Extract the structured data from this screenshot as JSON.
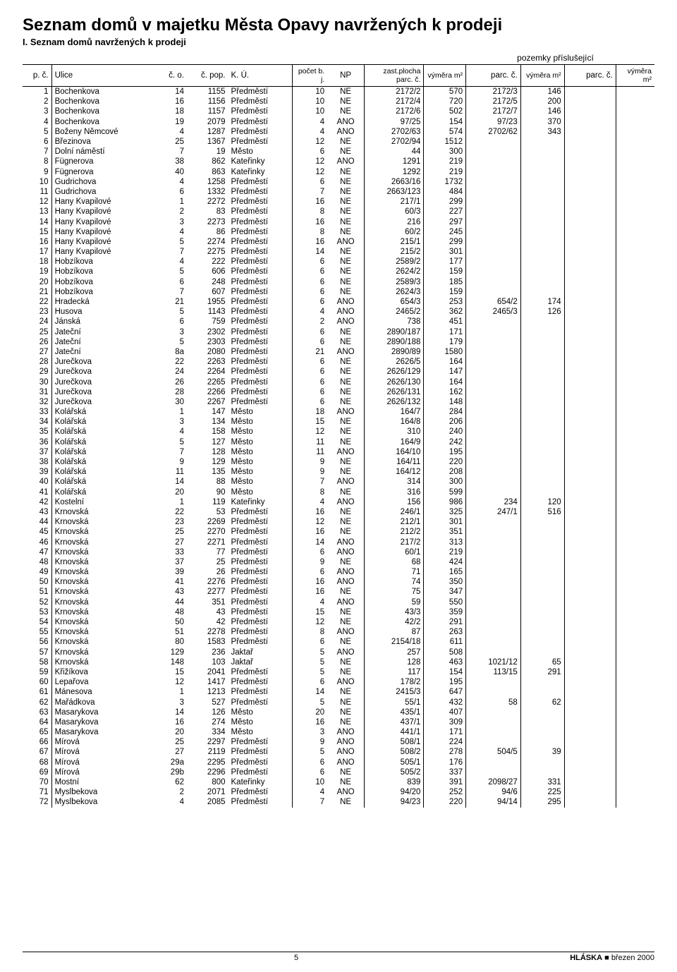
{
  "title": "Seznam domů v majetku Města Opavy navržených k prodeji",
  "subtitle": "I. Seznam domů navržených k prodeji",
  "pozemky_label": "pozemky příslušející",
  "headers": {
    "pc": "p. č.",
    "ulice": "Ulice",
    "co": "č. o.",
    "pop": "č. pop.",
    "ku": "K. Ú.",
    "bj": "počet b. j.",
    "np": "NP",
    "zp": "zast.plocha parc. č.",
    "vymera": "výměra m²",
    "parc": "parc. č.",
    "vymera2": "výměra m²",
    "parc2": "parc. č.",
    "vymera3": "výměra m²"
  },
  "footer": {
    "page": "5",
    "pub": "HLÁSKA",
    "sep": "■",
    "date": "březen 2000"
  },
  "rows": [
    {
      "n": 1,
      "ul": "Bochenkova",
      "co": "14",
      "pop": "1155",
      "ku": "Předměstí",
      "bj": "10",
      "np": "NE",
      "zp": "2172/2",
      "vy": "570",
      "p1": "2172/3",
      "v1": "146",
      "p2": "",
      "v2": ""
    },
    {
      "n": 2,
      "ul": "Bochenkova",
      "co": "16",
      "pop": "1156",
      "ku": "Předměstí",
      "bj": "10",
      "np": "NE",
      "zp": "2172/4",
      "vy": "720",
      "p1": "2172/5",
      "v1": "200",
      "p2": "",
      "v2": ""
    },
    {
      "n": 3,
      "ul": "Bochenkova",
      "co": "18",
      "pop": "1157",
      "ku": "Předměstí",
      "bj": "10",
      "np": "NE",
      "zp": "2172/6",
      "vy": "502",
      "p1": "2172/7",
      "v1": "146",
      "p2": "",
      "v2": ""
    },
    {
      "n": 4,
      "ul": "Bochenkova",
      "co": "19",
      "pop": "2079",
      "ku": "Předměstí",
      "bj": "4",
      "np": "ANO",
      "zp": "97/25",
      "vy": "154",
      "p1": "97/23",
      "v1": "370",
      "p2": "",
      "v2": ""
    },
    {
      "n": 5,
      "ul": "Boženy Němcové",
      "co": "4",
      "pop": "1287",
      "ku": "Předměstí",
      "bj": "4",
      "np": "ANO",
      "zp": "2702/63",
      "vy": "574",
      "p1": "2702/62",
      "v1": "343",
      "p2": "",
      "v2": ""
    },
    {
      "n": 6,
      "ul": "Březinova",
      "co": "25",
      "pop": "1367",
      "ku": "Předměstí",
      "bj": "12",
      "np": "NE",
      "zp": "2702/94",
      "vy": "1512",
      "p1": "",
      "v1": "",
      "p2": "",
      "v2": ""
    },
    {
      "n": 7,
      "ul": "Dolní náměstí",
      "co": "7",
      "pop": "19",
      "ku": "Město",
      "bj": "6",
      "np": "NE",
      "zp": "44",
      "vy": "300",
      "p1": "",
      "v1": "",
      "p2": "",
      "v2": ""
    },
    {
      "n": 8,
      "ul": "Fügnerova",
      "co": "38",
      "pop": "862",
      "ku": "Kateřinky",
      "bj": "12",
      "np": "ANO",
      "zp": "1291",
      "vy": "219",
      "p1": "",
      "v1": "",
      "p2": "",
      "v2": ""
    },
    {
      "n": 9,
      "ul": "Fügnerova",
      "co": "40",
      "pop": "863",
      "ku": "Kateřinky",
      "bj": "12",
      "np": "NE",
      "zp": "1292",
      "vy": "219",
      "p1": "",
      "v1": "",
      "p2": "",
      "v2": ""
    },
    {
      "n": 10,
      "ul": "Gudrichova",
      "co": "4",
      "pop": "1258",
      "ku": "Předměstí",
      "bj": "6",
      "np": "NE",
      "zp": "2663/16",
      "vy": "1732",
      "p1": "",
      "v1": "",
      "p2": "",
      "v2": ""
    },
    {
      "n": 11,
      "ul": "Gudrichova",
      "co": "6",
      "pop": "1332",
      "ku": "Předměstí",
      "bj": "7",
      "np": "NE",
      "zp": "2663/123",
      "vy": "484",
      "p1": "",
      "v1": "",
      "p2": "",
      "v2": ""
    },
    {
      "n": 12,
      "ul": "Hany Kvapilové",
      "co": "1",
      "pop": "2272",
      "ku": "Předměstí",
      "bj": "16",
      "np": "NE",
      "zp": "217/1",
      "vy": "299",
      "p1": "",
      "v1": "",
      "p2": "",
      "v2": ""
    },
    {
      "n": 13,
      "ul": "Hany Kvapilové",
      "co": "2",
      "pop": "83",
      "ku": "Předměstí",
      "bj": "8",
      "np": "NE",
      "zp": "60/3",
      "vy": "227",
      "p1": "",
      "v1": "",
      "p2": "",
      "v2": ""
    },
    {
      "n": 14,
      "ul": "Hany Kvapilové",
      "co": "3",
      "pop": "2273",
      "ku": "Předměstí",
      "bj": "16",
      "np": "NE",
      "zp": "216",
      "vy": "297",
      "p1": "",
      "v1": "",
      "p2": "",
      "v2": ""
    },
    {
      "n": 15,
      "ul": "Hany Kvapilové",
      "co": "4",
      "pop": "86",
      "ku": "Předměstí",
      "bj": "8",
      "np": "NE",
      "zp": "60/2",
      "vy": "245",
      "p1": "",
      "v1": "",
      "p2": "",
      "v2": ""
    },
    {
      "n": 16,
      "ul": "Hany Kvapilové",
      "co": "5",
      "pop": "2274",
      "ku": "Předměstí",
      "bj": "16",
      "np": "ANO",
      "zp": "215/1",
      "vy": "299",
      "p1": "",
      "v1": "",
      "p2": "",
      "v2": ""
    },
    {
      "n": 17,
      "ul": "Hany Kvapilové",
      "co": "7",
      "pop": "2275",
      "ku": "Předměstí",
      "bj": "14",
      "np": "NE",
      "zp": "215/2",
      "vy": "301",
      "p1": "",
      "v1": "",
      "p2": "",
      "v2": ""
    },
    {
      "n": 18,
      "ul": "Hobzíkova",
      "co": "4",
      "pop": "222",
      "ku": "Předměstí",
      "bj": "6",
      "np": "NE",
      "zp": "2589/2",
      "vy": "177",
      "p1": "",
      "v1": "",
      "p2": "",
      "v2": ""
    },
    {
      "n": 19,
      "ul": "Hobzíkova",
      "co": "5",
      "pop": "606",
      "ku": "Předměstí",
      "bj": "6",
      "np": "NE",
      "zp": "2624/2",
      "vy": "159",
      "p1": "",
      "v1": "",
      "p2": "",
      "v2": ""
    },
    {
      "n": 20,
      "ul": "Hobzíkova",
      "co": "6",
      "pop": "248",
      "ku": "Předměstí",
      "bj": "6",
      "np": "NE",
      "zp": "2589/3",
      "vy": "185",
      "p1": "",
      "v1": "",
      "p2": "",
      "v2": ""
    },
    {
      "n": 21,
      "ul": "Hobzíkova",
      "co": "7",
      "pop": "607",
      "ku": "Předměstí",
      "bj": "6",
      "np": "NE",
      "zp": "2624/3",
      "vy": "159",
      "p1": "",
      "v1": "",
      "p2": "",
      "v2": ""
    },
    {
      "n": 22,
      "ul": "Hradecká",
      "co": "21",
      "pop": "1955",
      "ku": "Předměstí",
      "bj": "6",
      "np": "ANO",
      "zp": "654/3",
      "vy": "253",
      "p1": "654/2",
      "v1": "174",
      "p2": "",
      "v2": ""
    },
    {
      "n": 23,
      "ul": "Husova",
      "co": "5",
      "pop": "1143",
      "ku": "Předměstí",
      "bj": "4",
      "np": "ANO",
      "zp": "2465/2",
      "vy": "362",
      "p1": "2465/3",
      "v1": "126",
      "p2": "",
      "v2": ""
    },
    {
      "n": 24,
      "ul": "Jánská",
      "co": "6",
      "pop": "759",
      "ku": "Předměstí",
      "bj": "2",
      "np": "ANO",
      "zp": "738",
      "vy": "451",
      "p1": "",
      "v1": "",
      "p2": "",
      "v2": ""
    },
    {
      "n": 25,
      "ul": "Jateční",
      "co": "3",
      "pop": "2302",
      "ku": "Předměstí",
      "bj": "6",
      "np": "NE",
      "zp": "2890/187",
      "vy": "171",
      "p1": "",
      "v1": "",
      "p2": "",
      "v2": ""
    },
    {
      "n": 26,
      "ul": "Jateční",
      "co": "5",
      "pop": "2303",
      "ku": "Předměstí",
      "bj": "6",
      "np": "NE",
      "zp": "2890/188",
      "vy": "179",
      "p1": "",
      "v1": "",
      "p2": "",
      "v2": ""
    },
    {
      "n": 27,
      "ul": "Jateční",
      "co": "8a",
      "pop": "2080",
      "ku": "Předměstí",
      "bj": "21",
      "np": "ANO",
      "zp": "2890/89",
      "vy": "1580",
      "p1": "",
      "v1": "",
      "p2": "",
      "v2": ""
    },
    {
      "n": 28,
      "ul": "Jurečkova",
      "co": "22",
      "pop": "2263",
      "ku": "Předměstí",
      "bj": "6",
      "np": "NE",
      "zp": "2626/5",
      "vy": "164",
      "p1": "",
      "v1": "",
      "p2": "",
      "v2": ""
    },
    {
      "n": 29,
      "ul": "Jurečkova",
      "co": "24",
      "pop": "2264",
      "ku": "Předměstí",
      "bj": "6",
      "np": "NE",
      "zp": "2626/129",
      "vy": "147",
      "p1": "",
      "v1": "",
      "p2": "",
      "v2": ""
    },
    {
      "n": 30,
      "ul": "Jurečkova",
      "co": "26",
      "pop": "2265",
      "ku": "Předměstí",
      "bj": "6",
      "np": "NE",
      "zp": "2626/130",
      "vy": "164",
      "p1": "",
      "v1": "",
      "p2": "",
      "v2": ""
    },
    {
      "n": 31,
      "ul": "Jurečkova",
      "co": "28",
      "pop": "2266",
      "ku": "Předměstí",
      "bj": "6",
      "np": "NE",
      "zp": "2626/131",
      "vy": "162",
      "p1": "",
      "v1": "",
      "p2": "",
      "v2": ""
    },
    {
      "n": 32,
      "ul": "Jurečkova",
      "co": "30",
      "pop": "2267",
      "ku": "Předměstí",
      "bj": "6",
      "np": "NE",
      "zp": "2626/132",
      "vy": "148",
      "p1": "",
      "v1": "",
      "p2": "",
      "v2": ""
    },
    {
      "n": 33,
      "ul": "Kolářská",
      "co": "1",
      "pop": "147",
      "ku": "Město",
      "bj": "18",
      "np": "ANO",
      "zp": "164/7",
      "vy": "284",
      "p1": "",
      "v1": "",
      "p2": "",
      "v2": ""
    },
    {
      "n": 34,
      "ul": "Kolářská",
      "co": "3",
      "pop": "134",
      "ku": "Město",
      "bj": "15",
      "np": "NE",
      "zp": "164/8",
      "vy": "206",
      "p1": "",
      "v1": "",
      "p2": "",
      "v2": ""
    },
    {
      "n": 35,
      "ul": "Kolářská",
      "co": "4",
      "pop": "158",
      "ku": "Město",
      "bj": "12",
      "np": "NE",
      "zp": "310",
      "vy": "240",
      "p1": "",
      "v1": "",
      "p2": "",
      "v2": ""
    },
    {
      "n": 36,
      "ul": "Kolářská",
      "co": "5",
      "pop": "127",
      "ku": "Město",
      "bj": "11",
      "np": "NE",
      "zp": "164/9",
      "vy": "242",
      "p1": "",
      "v1": "",
      "p2": "",
      "v2": ""
    },
    {
      "n": 37,
      "ul": "Kolářská",
      "co": "7",
      "pop": "128",
      "ku": "Město",
      "bj": "11",
      "np": "ANO",
      "zp": "164/10",
      "vy": "195",
      "p1": "",
      "v1": "",
      "p2": "",
      "v2": ""
    },
    {
      "n": 38,
      "ul": "Kolářská",
      "co": "9",
      "pop": "129",
      "ku": "Město",
      "bj": "9",
      "np": "NE",
      "zp": "164/11",
      "vy": "220",
      "p1": "",
      "v1": "",
      "p2": "",
      "v2": ""
    },
    {
      "n": 39,
      "ul": "Kolářská",
      "co": "11",
      "pop": "135",
      "ku": "Město",
      "bj": "9",
      "np": "NE",
      "zp": "164/12",
      "vy": "208",
      "p1": "",
      "v1": "",
      "p2": "",
      "v2": ""
    },
    {
      "n": 40,
      "ul": "Kolářská",
      "co": "14",
      "pop": "88",
      "ku": "Město",
      "bj": "7",
      "np": "ANO",
      "zp": "314",
      "vy": "300",
      "p1": "",
      "v1": "",
      "p2": "",
      "v2": ""
    },
    {
      "n": 41,
      "ul": "Kolářská",
      "co": "20",
      "pop": "90",
      "ku": "Město",
      "bj": "8",
      "np": "NE",
      "zp": "316",
      "vy": "599",
      "p1": "",
      "v1": "",
      "p2": "",
      "v2": ""
    },
    {
      "n": 42,
      "ul": "Kostelní",
      "co": "1",
      "pop": "119",
      "ku": "Kateřinky",
      "bj": "4",
      "np": "ANO",
      "zp": "156",
      "vy": "986",
      "p1": "234",
      "v1": "120",
      "p2": "",
      "v2": ""
    },
    {
      "n": 43,
      "ul": "Krnovská",
      "co": "22",
      "pop": "53",
      "ku": "Předměstí",
      "bj": "16",
      "np": "NE",
      "zp": "246/1",
      "vy": "325",
      "p1": "247/1",
      "v1": "516",
      "p2": "",
      "v2": ""
    },
    {
      "n": 44,
      "ul": "Krnovská",
      "co": "23",
      "pop": "2269",
      "ku": "Předměstí",
      "bj": "12",
      "np": "NE",
      "zp": "212/1",
      "vy": "301",
      "p1": "",
      "v1": "",
      "p2": "",
      "v2": ""
    },
    {
      "n": 45,
      "ul": "Krnovská",
      "co": "25",
      "pop": "2270",
      "ku": "Předměstí",
      "bj": "16",
      "np": "NE",
      "zp": "212/2",
      "vy": "351",
      "p1": "",
      "v1": "",
      "p2": "",
      "v2": ""
    },
    {
      "n": 46,
      "ul": "Krnovská",
      "co": "27",
      "pop": "2271",
      "ku": "Předměstí",
      "bj": "14",
      "np": "ANO",
      "zp": "217/2",
      "vy": "313",
      "p1": "",
      "v1": "",
      "p2": "",
      "v2": ""
    },
    {
      "n": 47,
      "ul": "Krnovská",
      "co": "33",
      "pop": "77",
      "ku": "Předměstí",
      "bj": "6",
      "np": "ANO",
      "zp": "60/1",
      "vy": "219",
      "p1": "",
      "v1": "",
      "p2": "",
      "v2": ""
    },
    {
      "n": 48,
      "ul": "Krnovská",
      "co": "37",
      "pop": "25",
      "ku": "Předměstí",
      "bj": "9",
      "np": "NE",
      "zp": "68",
      "vy": "424",
      "p1": "",
      "v1": "",
      "p2": "",
      "v2": ""
    },
    {
      "n": 49,
      "ul": "Krnovská",
      "co": "39",
      "pop": "26",
      "ku": "Předměstí",
      "bj": "6",
      "np": "ANO",
      "zp": "71",
      "vy": "165",
      "p1": "",
      "v1": "",
      "p2": "",
      "v2": ""
    },
    {
      "n": 50,
      "ul": "Krnovská",
      "co": "41",
      "pop": "2276",
      "ku": "Předměstí",
      "bj": "16",
      "np": "ANO",
      "zp": "74",
      "vy": "350",
      "p1": "",
      "v1": "",
      "p2": "",
      "v2": ""
    },
    {
      "n": 51,
      "ul": "Krnovská",
      "co": "43",
      "pop": "2277",
      "ku": "Předměstí",
      "bj": "16",
      "np": "NE",
      "zp": "75",
      "vy": "347",
      "p1": "",
      "v1": "",
      "p2": "",
      "v2": ""
    },
    {
      "n": 52,
      "ul": "Krnovská",
      "co": "44",
      "pop": "351",
      "ku": "Předměstí",
      "bj": "4",
      "np": "ANO",
      "zp": "59",
      "vy": "550",
      "p1": "",
      "v1": "",
      "p2": "",
      "v2": ""
    },
    {
      "n": 53,
      "ul": "Krnovská",
      "co": "48",
      "pop": "43",
      "ku": "Předměstí",
      "bj": "15",
      "np": "NE",
      "zp": "43/3",
      "vy": "359",
      "p1": "",
      "v1": "",
      "p2": "",
      "v2": ""
    },
    {
      "n": 54,
      "ul": "Krnovská",
      "co": "50",
      "pop": "42",
      "ku": "Předměstí",
      "bj": "12",
      "np": "NE",
      "zp": "42/2",
      "vy": "291",
      "p1": "",
      "v1": "",
      "p2": "",
      "v2": ""
    },
    {
      "n": 55,
      "ul": "Krnovská",
      "co": "51",
      "pop": "2278",
      "ku": "Předměstí",
      "bj": "8",
      "np": "ANO",
      "zp": "87",
      "vy": "263",
      "p1": "",
      "v1": "",
      "p2": "",
      "v2": ""
    },
    {
      "n": 56,
      "ul": "Krnovská",
      "co": "80",
      "pop": "1583",
      "ku": "Předměstí",
      "bj": "6",
      "np": "NE",
      "zp": "2154/18",
      "vy": "611",
      "p1": "",
      "v1": "",
      "p2": "",
      "v2": ""
    },
    {
      "n": 57,
      "ul": "Krnovská",
      "co": "129",
      "pop": "236",
      "ku": "Jaktař",
      "bj": "5",
      "np": "ANO",
      "zp": "257",
      "vy": "508",
      "p1": "",
      "v1": "",
      "p2": "",
      "v2": ""
    },
    {
      "n": 58,
      "ul": "Krnovská",
      "co": "148",
      "pop": "103",
      "ku": "Jaktař",
      "bj": "5",
      "np": "NE",
      "zp": "128",
      "vy": "463",
      "p1": "1021/12",
      "v1": "65",
      "p2": "",
      "v2": ""
    },
    {
      "n": 59,
      "ul": "Křižíkova",
      "co": "15",
      "pop": "2041",
      "ku": "Předměstí",
      "bj": "5",
      "np": "NE",
      "zp": "117",
      "vy": "154",
      "p1": "113/15",
      "v1": "291",
      "p2": "",
      "v2": ""
    },
    {
      "n": 60,
      "ul": "Lepařova",
      "co": "12",
      "pop": "1417",
      "ku": "Předměstí",
      "bj": "6",
      "np": "ANO",
      "zp": "178/2",
      "vy": "195",
      "p1": "",
      "v1": "",
      "p2": "",
      "v2": ""
    },
    {
      "n": 61,
      "ul": "Mánesova",
      "co": "1",
      "pop": "1213",
      "ku": "Předměstí",
      "bj": "14",
      "np": "NE",
      "zp": "2415/3",
      "vy": "647",
      "p1": "",
      "v1": "",
      "p2": "",
      "v2": ""
    },
    {
      "n": 62,
      "ul": "Mařádkova",
      "co": "3",
      "pop": "527",
      "ku": "Předměstí",
      "bj": "5",
      "np": "NE",
      "zp": "55/1",
      "vy": "432",
      "p1": "58",
      "v1": "62",
      "p2": "",
      "v2": ""
    },
    {
      "n": 63,
      "ul": "Masarykova",
      "co": "14",
      "pop": "126",
      "ku": "Město",
      "bj": "20",
      "np": "NE",
      "zp": "435/1",
      "vy": "407",
      "p1": "",
      "v1": "",
      "p2": "",
      "v2": ""
    },
    {
      "n": 64,
      "ul": "Masarykova",
      "co": "16",
      "pop": "274",
      "ku": "Město",
      "bj": "16",
      "np": "NE",
      "zp": "437/1",
      "vy": "309",
      "p1": "",
      "v1": "",
      "p2": "",
      "v2": ""
    },
    {
      "n": 65,
      "ul": "Masarykova",
      "co": "20",
      "pop": "334",
      "ku": "Město",
      "bj": "3",
      "np": "ANO",
      "zp": "441/1",
      "vy": "171",
      "p1": "",
      "v1": "",
      "p2": "",
      "v2": ""
    },
    {
      "n": 66,
      "ul": "Mírová",
      "co": "25",
      "pop": "2297",
      "ku": "Předměstí",
      "bj": "9",
      "np": "ANO",
      "zp": "508/1",
      "vy": "224",
      "p1": "",
      "v1": "",
      "p2": "",
      "v2": ""
    },
    {
      "n": 67,
      "ul": "Mírová",
      "co": "27",
      "pop": "2119",
      "ku": "Předměstí",
      "bj": "5",
      "np": "ANO",
      "zp": "508/2",
      "vy": "278",
      "p1": "504/5",
      "v1": "39",
      "p2": "",
      "v2": ""
    },
    {
      "n": 68,
      "ul": "Mírová",
      "co": "29a",
      "pop": "2295",
      "ku": "Předměstí",
      "bj": "6",
      "np": "ANO",
      "zp": "505/1",
      "vy": "176",
      "p1": "",
      "v1": "",
      "p2": "",
      "v2": ""
    },
    {
      "n": 69,
      "ul": "Mírová",
      "co": "29b",
      "pop": "2296",
      "ku": "Předměstí",
      "bj": "6",
      "np": "NE",
      "zp": "505/2",
      "vy": "337",
      "p1": "",
      "v1": "",
      "p2": "",
      "v2": ""
    },
    {
      "n": 70,
      "ul": "Mostní",
      "co": "62",
      "pop": "800",
      "ku": "Kateřinky",
      "bj": "10",
      "np": "NE",
      "zp": "839",
      "vy": "391",
      "p1": "2098/27",
      "v1": "331",
      "p2": "",
      "v2": ""
    },
    {
      "n": 71,
      "ul": "Myslbekova",
      "co": "2",
      "pop": "2071",
      "ku": "Předměstí",
      "bj": "4",
      "np": "ANO",
      "zp": "94/20",
      "vy": "252",
      "p1": "94/6",
      "v1": "225",
      "p2": "",
      "v2": ""
    },
    {
      "n": 72,
      "ul": "Myslbekova",
      "co": "4",
      "pop": "2085",
      "ku": "Předměstí",
      "bj": "7",
      "np": "NE",
      "zp": "94/23",
      "vy": "220",
      "p1": "94/14",
      "v1": "295",
      "p2": "",
      "v2": ""
    }
  ]
}
